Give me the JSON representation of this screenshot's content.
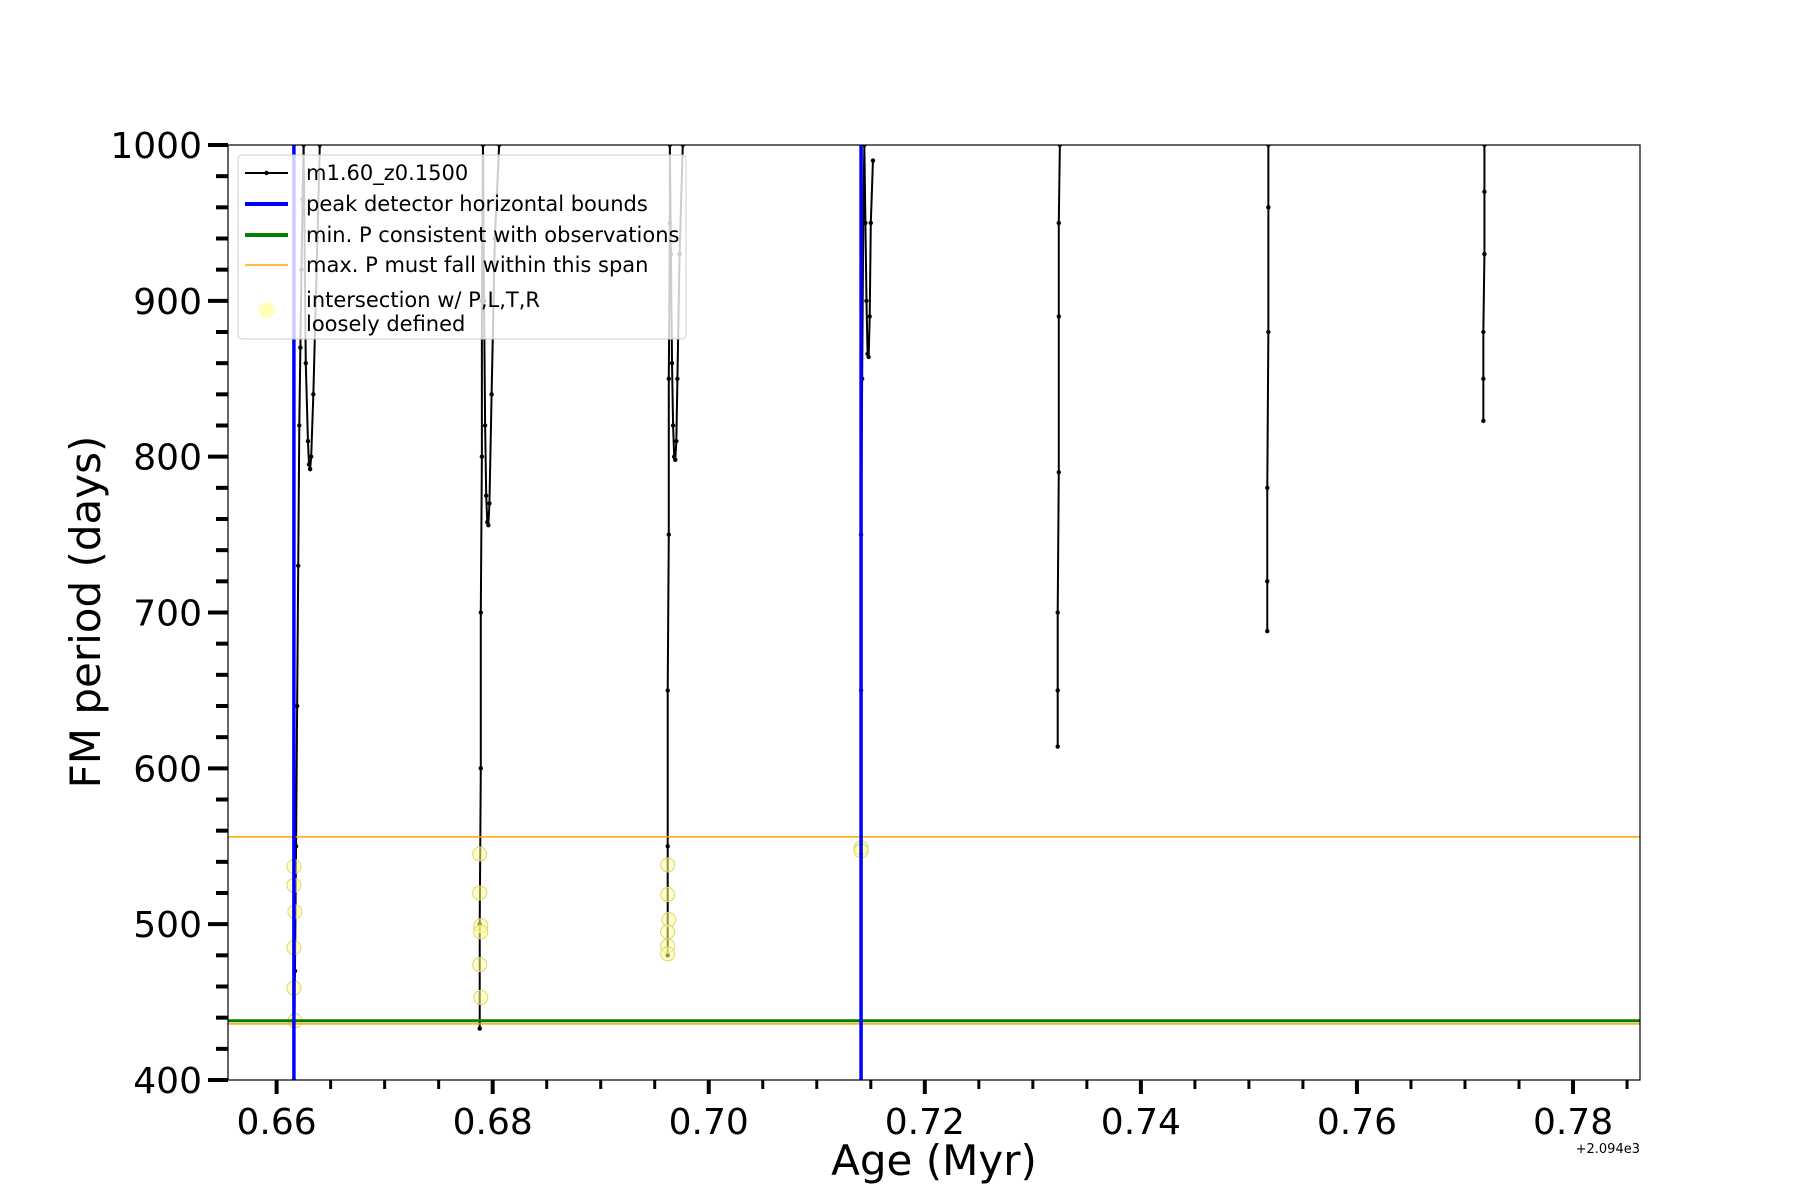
{
  "chart_data": {
    "type": "line",
    "xlabel": "Age (Myr)",
    "ylabel": "FM period (days)",
    "x_offset_label": "+2.094e3",
    "xlim": [
      0.6555,
      0.7862
    ],
    "ylim": [
      400,
      1000
    ],
    "x_ticks": [
      "0.66",
      "0.68",
      "0.70",
      "0.72",
      "0.74",
      "0.76",
      "0.78"
    ],
    "y_ticks": [
      "400",
      "500",
      "600",
      "700",
      "800",
      "900",
      "1000"
    ],
    "legend_position": "upper-left",
    "legend": [
      {
        "label": "m1.60_z0.1500",
        "kind": "line-marker",
        "color": "#000000"
      },
      {
        "label": "peak detector horizontal bounds",
        "kind": "thick-line",
        "color": "#0000ff"
      },
      {
        "label": "min. P consistent with observations",
        "kind": "thick-line",
        "color": "#008000"
      },
      {
        "label": "max. P must fall within this span",
        "kind": "thin-line",
        "color": "#ffa500"
      },
      {
        "label": "intersection w/ P,L,T,R\nloosely defined",
        "kind": "circle",
        "color": "#ffff99"
      }
    ],
    "vertical_lines": [
      {
        "x": 0.6616,
        "color": "#0000ff"
      },
      {
        "x": 0.7141,
        "color": "#0000ff"
      }
    ],
    "horizontal_lines": [
      {
        "y": 438,
        "color": "#008000"
      },
      {
        "y": 436,
        "color": "#ffa500"
      },
      {
        "y": 556,
        "color": "#ffa500"
      }
    ],
    "series": [
      {
        "name": "m1.60_z0.1500",
        "color": "#000000",
        "segments": [
          {
            "x": [
              0.6616,
              0.6617,
              0.6618,
              0.6619,
              0.662,
              0.6621,
              0.6622,
              0.6623,
              0.6624,
              0.6625,
              0.6627,
              0.6629,
              0.663,
              0.6631,
              0.6632,
              0.6634,
              0.6637,
              0.664
            ],
            "y": [
              400,
              470,
              550,
              640,
              730,
              820,
              870,
              920,
              965,
              1000,
              860,
              810,
              795,
              792,
              800,
              840,
              920,
              1000
            ]
          },
          {
            "x": [
              0.6788,
              0.6788,
              0.6789,
              0.6789,
              0.679,
              0.679,
              0.6791,
              0.6792,
              0.6793,
              0.6794,
              0.6795,
              0.6796,
              0.6797,
              0.6799,
              0.6802,
              0.6806
            ],
            "y": [
              433,
              500,
              600,
              700,
              800,
              900,
              1000,
              900,
              820,
              775,
              758,
              756,
              770,
              840,
              940,
              1000
            ]
          },
          {
            "x": [
              0.6962,
              0.6962,
              0.6962,
              0.6963,
              0.6963,
              0.6964,
              0.6964,
              0.6965,
              0.6966,
              0.6967,
              0.6968,
              0.6969,
              0.697,
              0.6971,
              0.6973,
              0.6976
            ],
            "y": [
              480,
              550,
              650,
              750,
              850,
              950,
              1000,
              930,
              860,
              820,
              800,
              798,
              810,
              850,
              930,
              1000
            ]
          },
          {
            "x": [
              0.7141,
              0.7141,
              0.7141,
              0.7142,
              0.7143,
              0.7144,
              0.7145,
              0.7146,
              0.7147,
              0.7148,
              0.7149,
              0.715,
              0.7152
            ],
            "y": [
              545,
              650,
              750,
              850,
              950,
              1000,
              950,
              900,
              866,
              864,
              890,
              950,
              990
            ]
          },
          {
            "x": [
              0.7323,
              0.7323,
              0.7323,
              0.7324,
              0.7324,
              0.7324,
              0.7325
            ],
            "y": [
              614,
              650,
              700,
              790,
              890,
              950,
              1000
            ]
          },
          {
            "x": [
              0.7517,
              0.7517,
              0.7517,
              0.7518,
              0.7518,
              0.7518
            ],
            "y": [
              688,
              720,
              780,
              880,
              960,
              1000
            ]
          },
          {
            "x": [
              0.7717,
              0.7717,
              0.7717,
              0.7718,
              0.7718,
              0.7718
            ],
            "y": [
              823,
              850,
              880,
              930,
              970,
              1000
            ]
          }
        ]
      }
    ],
    "intersection_points": {
      "color": "#ffff99",
      "x": [
        0.6616,
        0.6616,
        0.6617,
        0.6616,
        0.6616,
        0.6617,
        0.6788,
        0.6788,
        0.6789,
        0.6789,
        0.6788,
        0.6789,
        0.6962,
        0.6962,
        0.6963,
        0.6962,
        0.6962,
        0.6962,
        0.7141,
        0.7141
      ],
      "y": [
        537,
        525,
        508,
        485,
        459,
        438,
        545,
        520,
        499,
        495,
        474,
        453,
        538,
        519,
        503,
        495,
        486,
        481,
        549,
        547
      ]
    }
  }
}
